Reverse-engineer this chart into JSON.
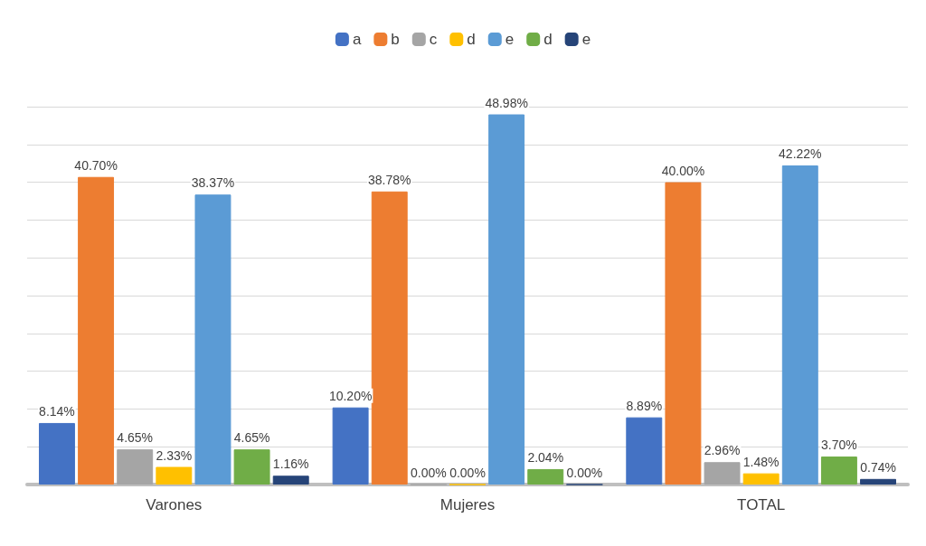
{
  "chart_data": {
    "type": "bar",
    "categories": [
      "Varones",
      "Mujeres",
      "TOTAL"
    ],
    "series": [
      {
        "name": "a",
        "color": "#4472c4",
        "values": [
          8.14,
          10.2,
          8.89
        ],
        "value_labels": [
          "8.14%",
          "10.20%",
          "8.89%"
        ]
      },
      {
        "name": "b",
        "color": "#ed7d31",
        "values": [
          40.7,
          38.78,
          40.0
        ],
        "value_labels": [
          "40.70%",
          "38.78%",
          "40.00%"
        ]
      },
      {
        "name": "c",
        "color": "#a5a5a5",
        "values": [
          4.65,
          0.0,
          2.96
        ],
        "value_labels": [
          "4.65%",
          "0.00%",
          "2.96%"
        ]
      },
      {
        "name": "d",
        "color": "#ffc000",
        "values": [
          2.33,
          0.0,
          1.48
        ],
        "value_labels": [
          "2.33%",
          "0.00%",
          "1.48%"
        ]
      },
      {
        "name": "e",
        "color": "#5b9bd5",
        "values": [
          38.37,
          48.98,
          42.22
        ],
        "value_labels": [
          "38.37%",
          "48.98%",
          "42.22%"
        ]
      },
      {
        "name": "d",
        "color": "#70ad47",
        "values": [
          4.65,
          2.04,
          3.7
        ],
        "value_labels": [
          "4.65%",
          "2.04%",
          "3.70%"
        ]
      },
      {
        "name": "e",
        "color": "#264478",
        "values": [
          1.16,
          0.0,
          0.74
        ],
        "value_labels": [
          "1.16%",
          "0.00%",
          "0.74%"
        ]
      }
    ],
    "ylim": [
      0,
      50
    ],
    "yticks": [
      {
        "value": 0,
        "label": null
      },
      {
        "value": 5,
        "label": null
      },
      {
        "value": 10,
        "label": null
      },
      {
        "value": 15,
        "label": null
      },
      {
        "value": 20,
        "label": null
      },
      {
        "value": 25,
        "label": null
      },
      {
        "value": 30,
        "label": null
      },
      {
        "value": 35,
        "label": null
      },
      {
        "value": 40,
        "label": null
      },
      {
        "value": 45,
        "label": null
      },
      {
        "value": 50,
        "label": null
      }
    ],
    "grid": "y",
    "legend": "top",
    "tick_labels": "x"
  }
}
